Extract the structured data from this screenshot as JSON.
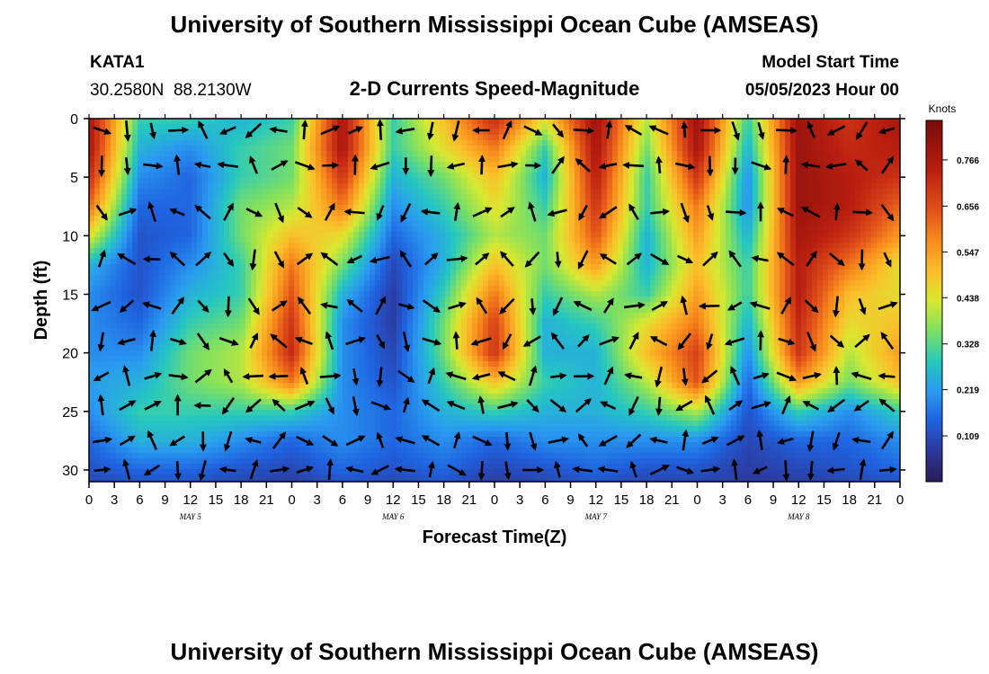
{
  "chart_data": {
    "type": "heatmap",
    "title": "University of Southern Mississippi Ocean Cube (AMSEAS)",
    "station": "KATA1",
    "coordinates": "30.2580N  88.2130W",
    "subtitle": "2-D Currents Speed-Magnitude",
    "model_start_label": "Model Start Time",
    "model_start_value": "05/05/2023 Hour 00",
    "xlabel": "Forecast Time(Z)",
    "ylabel": "Depth (ft)",
    "colorbar_label": "Knots",
    "x_range_hours": [
      0,
      96
    ],
    "ylim": [
      31,
      0
    ],
    "x_tick_labels": [
      "0",
      "3",
      "6",
      "9",
      "12",
      "15",
      "18",
      "21",
      "0",
      "3",
      "6",
      "9",
      "12",
      "15",
      "18",
      "21",
      "0",
      "3",
      "6",
      "9",
      "12",
      "15",
      "18",
      "21",
      "0",
      "3",
      "6",
      "9",
      "12",
      "15",
      "18",
      "21",
      "0"
    ],
    "day_labels": [
      "MAY 5",
      "MAY 6",
      "MAY 7",
      "MAY 8"
    ],
    "y_ticks": [
      0,
      5,
      10,
      15,
      20,
      25,
      30
    ],
    "colorbar_ticks": [
      "0.766",
      "0.656",
      "0.547",
      "0.438",
      "0.328",
      "0.219",
      "0.109"
    ],
    "colorbar_values": [
      0.766,
      0.656,
      0.547,
      0.438,
      0.328,
      0.219,
      0.109
    ],
    "colorbar_range": [
      0.0,
      0.86
    ],
    "speed_field_knots": {
      "x_hours": [
        0,
        6,
        12,
        18,
        24,
        30,
        36,
        42,
        48,
        54,
        60,
        66,
        72,
        78,
        84,
        90,
        96
      ],
      "depth_ft": [
        0,
        2.5,
        5,
        7.5,
        10,
        12.5,
        15,
        17.5,
        20,
        22.5,
        25,
        27.5,
        30,
        31
      ],
      "rows": [
        [
          0.78,
          0.3,
          0.3,
          0.25,
          0.3,
          0.78,
          0.3,
          0.5,
          0.72,
          0.45,
          0.8,
          0.4,
          0.8,
          0.3,
          0.8,
          0.7,
          0.78
        ],
        [
          0.78,
          0.25,
          0.2,
          0.3,
          0.35,
          0.78,
          0.3,
          0.45,
          0.6,
          0.3,
          0.78,
          0.35,
          0.78,
          0.25,
          0.8,
          0.72,
          0.75
        ],
        [
          0.72,
          0.2,
          0.15,
          0.3,
          0.35,
          0.7,
          0.25,
          0.35,
          0.5,
          0.25,
          0.75,
          0.3,
          0.7,
          0.2,
          0.8,
          0.75,
          0.7
        ],
        [
          0.62,
          0.15,
          0.15,
          0.35,
          0.4,
          0.6,
          0.2,
          0.3,
          0.45,
          0.3,
          0.7,
          0.3,
          0.6,
          0.2,
          0.8,
          0.75,
          0.62
        ],
        [
          0.45,
          0.12,
          0.15,
          0.35,
          0.5,
          0.45,
          0.15,
          0.25,
          0.4,
          0.35,
          0.65,
          0.25,
          0.55,
          0.25,
          0.78,
          0.7,
          0.55
        ],
        [
          0.25,
          0.12,
          0.2,
          0.3,
          0.6,
          0.35,
          0.1,
          0.25,
          0.5,
          0.35,
          0.55,
          0.25,
          0.5,
          0.3,
          0.75,
          0.6,
          0.45
        ],
        [
          0.2,
          0.12,
          0.25,
          0.3,
          0.65,
          0.25,
          0.08,
          0.3,
          0.6,
          0.3,
          0.4,
          0.3,
          0.55,
          0.3,
          0.75,
          0.5,
          0.45
        ],
        [
          0.2,
          0.15,
          0.3,
          0.35,
          0.7,
          0.2,
          0.08,
          0.35,
          0.68,
          0.25,
          0.3,
          0.45,
          0.6,
          0.25,
          0.72,
          0.45,
          0.5
        ],
        [
          0.2,
          0.2,
          0.35,
          0.4,
          0.72,
          0.2,
          0.1,
          0.35,
          0.7,
          0.25,
          0.25,
          0.5,
          0.68,
          0.2,
          0.7,
          0.4,
          0.55
        ],
        [
          0.22,
          0.25,
          0.35,
          0.4,
          0.6,
          0.2,
          0.12,
          0.3,
          0.5,
          0.3,
          0.25,
          0.4,
          0.65,
          0.15,
          0.55,
          0.35,
          0.5
        ],
        [
          0.2,
          0.3,
          0.3,
          0.3,
          0.3,
          0.2,
          0.15,
          0.25,
          0.3,
          0.25,
          0.25,
          0.3,
          0.4,
          0.12,
          0.3,
          0.2,
          0.3
        ],
        [
          0.15,
          0.25,
          0.25,
          0.2,
          0.15,
          0.2,
          0.15,
          0.2,
          0.15,
          0.2,
          0.2,
          0.2,
          0.2,
          0.1,
          0.15,
          0.15,
          0.2
        ],
        [
          0.12,
          0.15,
          0.15,
          0.12,
          0.1,
          0.15,
          0.12,
          0.15,
          0.1,
          0.12,
          0.15,
          0.12,
          0.12,
          0.08,
          0.1,
          0.12,
          0.15
        ],
        [
          0.1,
          0.12,
          0.12,
          0.1,
          0.08,
          0.12,
          0.1,
          0.12,
          0.08,
          0.1,
          0.12,
          0.1,
          0.1,
          0.08,
          0.08,
          0.1,
          0.12
        ]
      ]
    },
    "vector_field": {
      "depth_ft": [
        1,
        4,
        8,
        12,
        16,
        19,
        22,
        24.5,
        27.5,
        30
      ],
      "x_hours": [
        1.5,
        4.5,
        7.5,
        10.5,
        13.5,
        16.5,
        19.5,
        22.5,
        25.5,
        28.5,
        31.5,
        34.5,
        37.5,
        40.5,
        43.5,
        46.5,
        49.5,
        52.5,
        55.5,
        58.5,
        61.5,
        64.5,
        67.5,
        70.5,
        73.5,
        76.5,
        79.5,
        82.5,
        85.5,
        88.5,
        91.5,
        94.5
      ],
      "note": "direction in degrees the current flows toward (0 = up/north, 90 = right/east) as drawn in the stick plot"
    }
  }
}
